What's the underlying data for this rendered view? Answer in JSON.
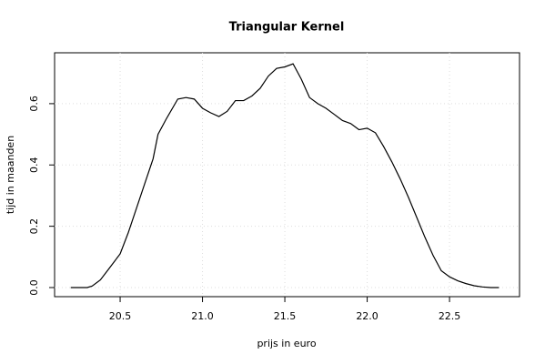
{
  "chart_data": {
    "type": "line",
    "title": "Triangular Kernel",
    "x_label": "prijs in euro",
    "y_label": "tijd in maanden",
    "series": [
      {
        "color": "#000000",
        "x": [
          20.2,
          20.3,
          20.33,
          20.38,
          20.43,
          20.5,
          20.55,
          20.6,
          20.65,
          20.7,
          20.73,
          20.78,
          20.85,
          20.9,
          20.95,
          21.0,
          21.05,
          21.1,
          21.15,
          21.2,
          21.25,
          21.3,
          21.35,
          21.4,
          21.45,
          21.5,
          21.55,
          21.6,
          21.65,
          21.7,
          21.75,
          21.8,
          21.85,
          21.9,
          21.95,
          22.0,
          22.05,
          22.1,
          22.15,
          22.2,
          22.25,
          22.3,
          22.35,
          22.4,
          22.45,
          22.5,
          22.55,
          22.6,
          22.65,
          22.7,
          22.75,
          22.8
        ],
        "values": [
          0,
          0,
          0.005,
          0.025,
          0.06,
          0.11,
          0.18,
          0.26,
          0.34,
          0.42,
          0.5,
          0.55,
          0.615,
          0.62,
          0.615,
          0.585,
          0.57,
          0.558,
          0.575,
          0.61,
          0.61,
          0.625,
          0.65,
          0.69,
          0.715,
          0.72,
          0.73,
          0.68,
          0.62,
          0.6,
          0.585,
          0.565,
          0.545,
          0.535,
          0.515,
          0.52,
          0.505,
          0.46,
          0.41,
          0.355,
          0.295,
          0.23,
          0.165,
          0.105,
          0.055,
          0.035,
          0.022,
          0.013,
          0.006,
          0.002,
          0,
          0
        ]
      }
    ],
    "xlim": [
      20.102,
      22.925
    ],
    "ylim": [
      -0.0297,
      0.766
    ],
    "xticks": [
      20.5,
      {
        "value": 21,
        "label": "21.0"
      },
      21.5,
      {
        "value": 22,
        "label": "22.0"
      },
      22.5
    ],
    "yticks": [
      {
        "value": 0,
        "label": "0.0"
      },
      0.2,
      0.4,
      0.6
    ],
    "grid": true
  }
}
